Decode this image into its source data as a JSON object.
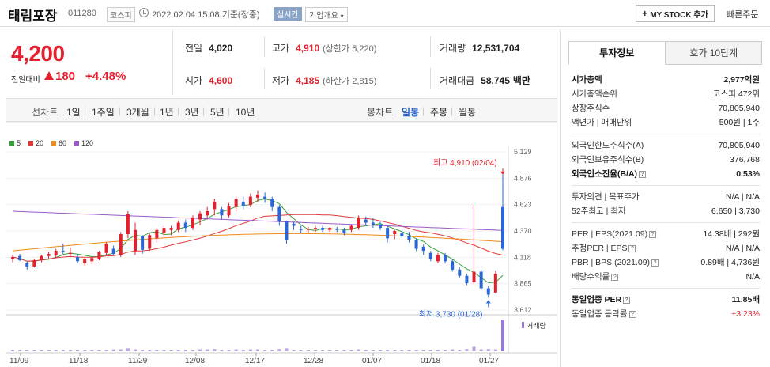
{
  "header": {
    "name": "태림포장",
    "code": "011280",
    "market": "코스피",
    "time": "2022.02.04 15:08 기준(장중)",
    "realtime": "실시간",
    "corp_info": "기업개요",
    "mystock": "MY STOCK 추가",
    "quick_order": "빠른주문"
  },
  "price": {
    "current": "4,200",
    "change_label": "전일대비",
    "change": "180",
    "pct": "+4.48%",
    "prev_label": "전일",
    "prev": "4,020",
    "high_label": "고가",
    "high": "4,910",
    "upper_limit": "(상한가 5,220)",
    "volume_label": "거래량",
    "volume": "12,531,704",
    "open_label": "시가",
    "open": "4,600",
    "low_label": "저가",
    "low": "4,185",
    "lower_limit": "(하한가 2,815)",
    "amount_label": "거래대금",
    "amount": "58,745",
    "amount_unit": "백만"
  },
  "toolbar": {
    "line_chart": "선차트",
    "periods": [
      "1일",
      "1주일",
      "3개월",
      "1년",
      "3년",
      "5년",
      "10년"
    ],
    "candle_chart": "봉차트",
    "candle_periods": [
      "일봉",
      "주봉",
      "월봉"
    ]
  },
  "chart_data": {
    "type": "candlestick",
    "legend": [
      "5",
      "20",
      "60",
      "120"
    ],
    "ma_colors": [
      "#3aa13a",
      "#e03a3a",
      "#f08a1a",
      "#9a5ac8"
    ],
    "yticks": [
      "5,129",
      "4,876",
      "4,623",
      "4,370",
      "4,118",
      "3,865",
      "3,612"
    ],
    "ylim": [
      3612,
      5129
    ],
    "xticks": [
      "11/09",
      "11/18",
      "11/29",
      "12/08",
      "12/17",
      "12/28",
      "01/07",
      "01/18",
      "01/27"
    ],
    "high_note": "최고 4,910 (02/04)",
    "low_note": "최저 3,730 (01/28)",
    "volume_label": "거래량",
    "candles": [
      [
        4100,
        4140,
        4070,
        4120
      ],
      [
        4130,
        4150,
        4080,
        4090
      ],
      [
        4060,
        4080,
        4000,
        4030
      ],
      [
        4030,
        4100,
        4020,
        4090
      ],
      [
        4090,
        4140,
        4070,
        4130
      ],
      [
        4130,
        4170,
        4100,
        4150
      ],
      [
        4140,
        4200,
        4110,
        4180
      ],
      [
        4180,
        4250,
        4150,
        4170
      ],
      [
        4150,
        4210,
        4120,
        4160
      ],
      [
        4120,
        4150,
        4060,
        4080
      ],
      [
        4060,
        4110,
        4040,
        4100
      ],
      [
        4080,
        4120,
        4050,
        4110
      ],
      [
        4100,
        4180,
        4090,
        4170
      ],
      [
        4160,
        4260,
        4140,
        4250
      ],
      [
        4200,
        4230,
        4140,
        4150
      ],
      [
        4140,
        4360,
        4120,
        4340
      ],
      [
        4340,
        4560,
        4300,
        4530
      ],
      [
        4180,
        4450,
        4140,
        4380
      ],
      [
        4320,
        4330,
        4150,
        4190
      ],
      [
        4200,
        4350,
        4180,
        4330
      ],
      [
        4300,
        4400,
        4260,
        4380
      ],
      [
        4350,
        4420,
        4300,
        4400
      ],
      [
        4380,
        4420,
        4330,
        4400
      ],
      [
        4380,
        4470,
        4360,
        4450
      ],
      [
        4450,
        4480,
        4360,
        4400
      ],
      [
        4400,
        4520,
        4380,
        4500
      ],
      [
        4480,
        4560,
        4430,
        4540
      ],
      [
        4520,
        4600,
        4480,
        4560
      ],
      [
        4580,
        4680,
        4520,
        4650
      ],
      [
        4580,
        4600,
        4480,
        4520
      ],
      [
        4520,
        4640,
        4500,
        4610
      ],
      [
        4600,
        4700,
        4560,
        4680
      ],
      [
        4650,
        4700,
        4580,
        4610
      ],
      [
        4620,
        4730,
        4600,
        4700
      ],
      [
        4690,
        4760,
        4650,
        4720
      ],
      [
        4700,
        4740,
        4640,
        4680
      ],
      [
        4680,
        4700,
        4560,
        4600
      ],
      [
        4600,
        4620,
        4420,
        4460
      ],
      [
        4460,
        4470,
        4250,
        4280
      ],
      [
        4440,
        4460,
        4380,
        4420
      ],
      [
        4390,
        4420,
        4350,
        4380
      ],
      [
        4380,
        4410,
        4350,
        4390
      ],
      [
        4390,
        4420,
        4360,
        4400
      ],
      [
        4400,
        4420,
        4360,
        4380
      ],
      [
        4380,
        4410,
        4360,
        4400
      ],
      [
        4390,
        4410,
        4360,
        4380
      ],
      [
        4380,
        4400,
        4330,
        4350
      ],
      [
        4380,
        4430,
        4360,
        4420
      ],
      [
        4400,
        4520,
        4380,
        4500
      ],
      [
        4480,
        4510,
        4420,
        4450
      ],
      [
        4450,
        4500,
        4400,
        4430
      ],
      [
        4430,
        4460,
        4380,
        4400
      ],
      [
        4400,
        4420,
        4260,
        4300
      ],
      [
        4340,
        4380,
        4290,
        4370
      ],
      [
        4350,
        4370,
        4300,
        4320
      ],
      [
        4320,
        4360,
        4260,
        4280
      ],
      [
        4280,
        4300,
        4180,
        4200
      ],
      [
        4220,
        4240,
        4140,
        4180
      ],
      [
        4160,
        4180,
        4080,
        4100
      ],
      [
        4080,
        4160,
        4060,
        4140
      ],
      [
        4140,
        4160,
        4060,
        4080
      ],
      [
        4080,
        4100,
        3980,
        4000
      ],
      [
        4000,
        4020,
        3920,
        3940
      ],
      [
        3940,
        3960,
        3850,
        3870
      ],
      [
        3880,
        4620,
        3860,
        3980
      ],
      [
        3980,
        4000,
        3800,
        3820
      ],
      [
        3820,
        3840,
        3730,
        3760
      ],
      [
        3780,
        3990,
        3770,
        3960
      ],
      [
        4600,
        4910,
        4185,
        4200
      ]
    ],
    "volumes": [
      5,
      4,
      3,
      3,
      4,
      3,
      5,
      5,
      4,
      3,
      3,
      4,
      4,
      5,
      6,
      6,
      9,
      6,
      5,
      5,
      4,
      4,
      4,
      5,
      5,
      4,
      6,
      6,
      7,
      5,
      5,
      6,
      5,
      6,
      6,
      5,
      5,
      7,
      9,
      4,
      3,
      3,
      3,
      3,
      3,
      3,
      4,
      4,
      6,
      4,
      3,
      3,
      5,
      3,
      3,
      4,
      5,
      4,
      4,
      4,
      4,
      6,
      5,
      7,
      14,
      6,
      7,
      6,
      100
    ]
  },
  "info": {
    "tabs": [
      "투자정보",
      "호가 10단계"
    ],
    "rows": [
      {
        "k": "시가총액",
        "v": "2,977억원",
        "kb": true,
        "vb": true
      },
      {
        "k": "시가총액순위",
        "v": "코스피 472위"
      },
      {
        "k": "상장주식수",
        "v": "70,805,940"
      },
      {
        "k": "액면가 | 매매단위",
        "v": "500원 | 1주"
      },
      {
        "sep": true
      },
      {
        "k": "외국인한도주식수(A)",
        "v": "70,805,940"
      },
      {
        "k": "외국인보유주식수(B)",
        "v": "376,768"
      },
      {
        "k": "외국인소진율(B/A)",
        "v": "0.53%",
        "kb": true,
        "vb": true,
        "q": true
      },
      {
        "sep": true
      },
      {
        "k": "투자의견 | 목표주가",
        "v": "N/A | N/A"
      },
      {
        "k": "52주최고 | 최저",
        "v": "6,650 | 3,730"
      },
      {
        "sep": true
      },
      {
        "k": "PER | EPS(2021.09)",
        "v": "14.38배 | 292원",
        "q": true
      },
      {
        "k": "추정PER | EPS",
        "v": "N/A | N/A",
        "q": true
      },
      {
        "k": "PBR | BPS (2021.09)",
        "v": "0.89배 | 4,736원",
        "q": true
      },
      {
        "k": "배당수익률",
        "v": "N/A",
        "q": true
      },
      {
        "sep": true
      },
      {
        "k": "동일업종 PER",
        "v": "11.85배",
        "kb": true,
        "vb": true,
        "q": true
      },
      {
        "k": "동일업종 등락률",
        "v": "+3.23%",
        "red": true,
        "q": true
      }
    ]
  }
}
